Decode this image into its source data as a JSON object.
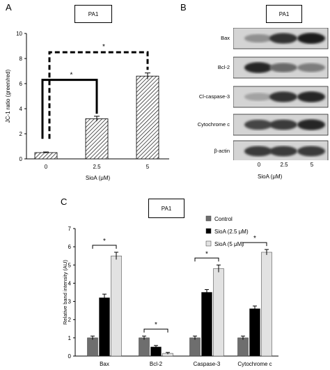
{
  "panel_letters": {
    "a": "A",
    "b": "B",
    "c": "C"
  },
  "chart_data": [
    {
      "type": "bar",
      "panel": "A",
      "title": "PA1",
      "categories": [
        "0",
        "2.5",
        "5"
      ],
      "values": [
        0.5,
        3.2,
        6.6
      ],
      "errors": [
        0.05,
        0.2,
        0.25
      ],
      "xlabel": "SioA (μM)",
      "ylabel": "JC-1 ratio (green/red)",
      "ylim": [
        0,
        10
      ],
      "yticks": [
        "0",
        "2",
        "4",
        "6",
        "8",
        "10"
      ],
      "significance": [
        {
          "from": "0",
          "to": "2.5",
          "label": "*",
          "style": "solid"
        },
        {
          "from": "0",
          "to": "5",
          "label": "*",
          "style": "dashed"
        }
      ],
      "bar_pattern": "diagonal-hatch"
    },
    {
      "type": "bar",
      "panel": "C",
      "title": "PA1",
      "categories": [
        "Bax",
        "Bcl-2",
        "Caspase-3",
        "Cytochrome c"
      ],
      "series": [
        {
          "name": "Control",
          "values": [
            1.0,
            1.0,
            1.0,
            1.0
          ],
          "errors": [
            0.1,
            0.1,
            0.1,
            0.1
          ],
          "color": "#6e6e6e"
        },
        {
          "name": "SioA (2.5 μM)",
          "values": [
            3.2,
            0.5,
            3.5,
            2.6
          ],
          "errors": [
            0.2,
            0.08,
            0.15,
            0.15
          ],
          "color": "#000000"
        },
        {
          "name": "SioA (5 μM)",
          "values": [
            5.5,
            0.15,
            4.8,
            5.7
          ],
          "errors": [
            0.2,
            0.05,
            0.2,
            0.15
          ],
          "color": "#e2e2e2"
        }
      ],
      "ylabel": "Relative band intensity (AU)",
      "ylim": [
        0,
        7
      ],
      "yticks": [
        "0",
        "1",
        "2",
        "3",
        "4",
        "5",
        "6",
        "7"
      ],
      "significance_label": "*",
      "legend_position": "top-right"
    }
  ],
  "western_blot": {
    "title": "PA1",
    "rows": [
      "Bax",
      "Bcl-2",
      "Cl-caspase-3",
      "Cytochrome c",
      "β-actin"
    ],
    "lanes": [
      "0",
      "2.5",
      "5"
    ],
    "xlabel": "SioA (μM)",
    "intensity": [
      [
        0.35,
        0.85,
        0.95
      ],
      [
        0.9,
        0.55,
        0.45
      ],
      [
        0.25,
        0.85,
        0.9
      ],
      [
        0.75,
        0.8,
        0.9
      ],
      [
        0.8,
        0.8,
        0.8
      ]
    ]
  }
}
